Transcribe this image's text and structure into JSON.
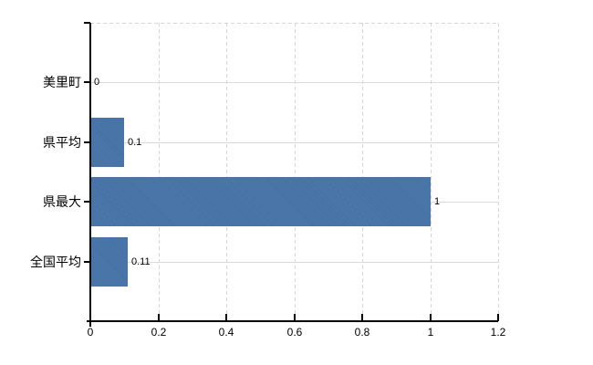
{
  "chart_data": {
    "type": "bar",
    "orientation": "horizontal",
    "title": "",
    "xlabel": "",
    "ylabel": "",
    "legend": null,
    "categories": [
      "美里町",
      "県平均",
      "県最大",
      "全国平均"
    ],
    "values": [
      0,
      0.1,
      1,
      0.11
    ],
    "value_labels": [
      "0",
      "0.1",
      "1",
      "0.11"
    ],
    "xlim": [
      0,
      1.2
    ],
    "xtick_values": [
      0,
      0.2,
      0.4,
      0.6,
      0.8,
      1,
      1.2
    ],
    "xtick_labels": [
      "0",
      "0.2",
      "0.4",
      "0.6",
      "0.8",
      "1",
      "1.2"
    ],
    "grid": {
      "vertical_style": "dashed",
      "horizontal_style": "solid",
      "top_border_style": "dashed"
    },
    "colors": {
      "bar": "#4573a8",
      "axis": "#000000",
      "horizontal_grid": "#d6ded6",
      "vertical_grid": "#d8d3d5",
      "label_text": "#000000"
    }
  }
}
